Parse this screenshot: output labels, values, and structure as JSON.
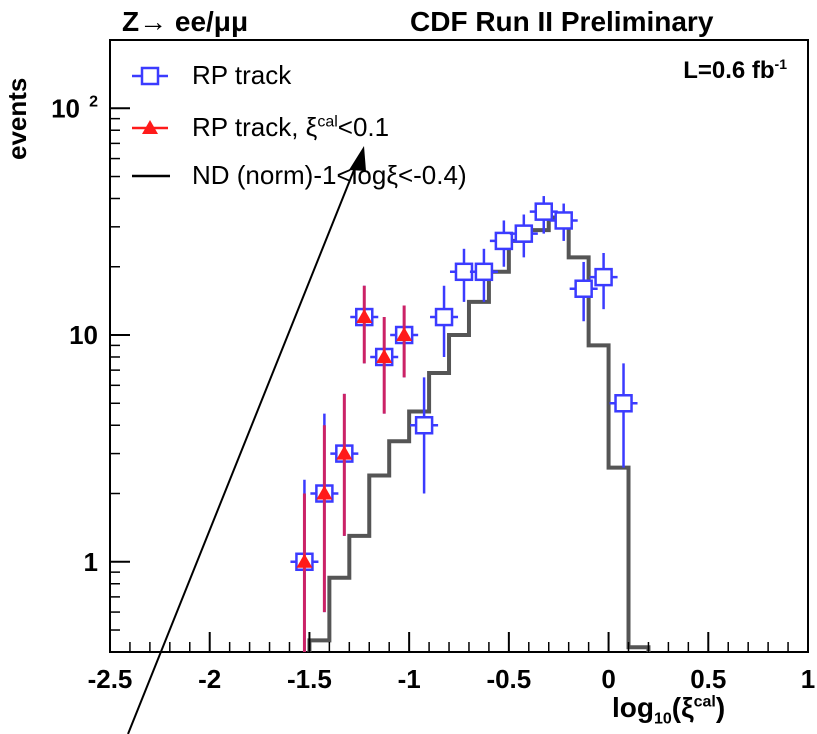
{
  "header": {
    "process": "Z→ ee/μμ",
    "experiment": "CDF Run II Preliminary",
    "lumi_prefix": "L=0.6 fb",
    "lumi_exp": "-1"
  },
  "legend": [
    {
      "label_main": "RP track",
      "label_sup": "",
      "label_tail": ""
    },
    {
      "label_main": "RP track, ξ",
      "label_sup": "cal",
      "label_tail": "<0.1"
    },
    {
      "label_main": "ND (norm)-1<logξ<-0.4)",
      "label_sup": "",
      "label_tail": ""
    }
  ],
  "axes": {
    "ylabel": "events",
    "xlabel_main": "log",
    "xlabel_sub": "10",
    "xlabel_open": "(ξ",
    "xlabel_sup": "cal",
    "xlabel_close": ")"
  },
  "chart_data": {
    "type": "scatter",
    "xlim": [
      -2.5,
      1.0
    ],
    "ylim": [
      0.4,
      200
    ],
    "yscale": "log",
    "xticks": [
      {
        "value": -2.5,
        "label": "-2.5"
      },
      {
        "value": -2.0,
        "label": "-2"
      },
      {
        "value": -1.5,
        "label": "-1.5"
      },
      {
        "value": -1.0,
        "label": "-1"
      },
      {
        "value": -0.5,
        "label": "-0.5"
      },
      {
        "value": 0.0,
        "label": "0"
      },
      {
        "value": 0.5,
        "label": "0.5"
      },
      {
        "value": 1.0,
        "label": "1"
      }
    ],
    "yticks": [
      {
        "value": 1,
        "label": "1"
      },
      {
        "value": 10,
        "label": "10"
      },
      {
        "value": 100,
        "label": "10",
        "sup": "2"
      }
    ],
    "colors": {
      "rp_track": "#3b3bff",
      "rp_track_cut": "#ff1a1a",
      "rp_cut_err": "#cc2266",
      "nd": "#000000"
    },
    "series": [
      {
        "name": "RP track",
        "marker": "open-square",
        "x": [
          -1.525,
          -1.425,
          -1.325,
          -1.225,
          -1.125,
          -1.025,
          -0.925,
          -0.825,
          -0.725,
          -0.625,
          -0.525,
          -0.425,
          -0.325,
          -0.225,
          -0.125,
          -0.025,
          0.075
        ],
        "y": [
          1,
          2,
          3,
          12,
          8,
          10,
          4,
          12,
          19,
          19,
          26,
          28,
          35,
          32,
          16,
          18,
          5
        ],
        "ylo": [
          0.4,
          0.6,
          1.3,
          7.5,
          4.5,
          6.5,
          2.0,
          8.0,
          14.0,
          14.0,
          20.0,
          22.0,
          28.0,
          26.0,
          11.5,
          13.0,
          2.6
        ],
        "yhi": [
          2.3,
          4.5,
          5.5,
          16.5,
          12.0,
          13.5,
          6.5,
          16.5,
          24.0,
          24.0,
          32.0,
          34.0,
          41.0,
          38.0,
          21.0,
          23.0,
          7.5
        ]
      },
      {
        "name": "RP track, ξ^cal<0.1",
        "marker": "filled-triangle",
        "x": [
          -1.525,
          -1.425,
          -1.325,
          -1.225,
          -1.125,
          -1.025
        ],
        "y": [
          1,
          2,
          3,
          12,
          8,
          10
        ],
        "ylo": [
          0.4,
          0.6,
          1.3,
          7.5,
          4.5,
          6.5
        ],
        "yhi": [
          2.0,
          4.0,
          5.5,
          16.5,
          12.0,
          13.5
        ]
      },
      {
        "name": "ND (norm)-1<logξ<-0.4)",
        "type": "step",
        "edges": [
          -1.5,
          -1.4,
          -1.3,
          -1.2,
          -1.1,
          -1.0,
          -0.9,
          -0.8,
          -0.7,
          -0.6,
          -0.5,
          -0.4,
          -0.3,
          -0.2,
          -0.1,
          0.0,
          0.1,
          0.2
        ],
        "values": [
          0.45,
          0.85,
          1.3,
          2.4,
          3.4,
          4.6,
          6.8,
          10.0,
          14.0,
          19.0,
          26.0,
          29.0,
          33.0,
          22.0,
          9.0,
          2.6,
          0.42
        ]
      }
    ]
  }
}
